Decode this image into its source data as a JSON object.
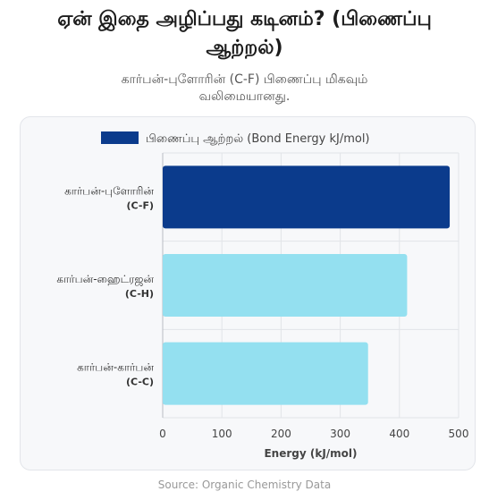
{
  "title_line1": "ஏன் இதை அழிப்பது கடினம்? (பிணைப்பு",
  "title_line2": "ஆற்றல்)",
  "subtitle_line1": "கார்பன்-புளோரின் (C-F) பிணைப்பு மிகவும்",
  "subtitle_line2": "வலிமையானது.",
  "source": "Source: Organic Chemistry Data",
  "colors": {
    "dark_bar": "#0b3b8c",
    "light_bar": "#94e0f0",
    "card_bg": "#f7f8fa",
    "grid": "#e2e4e8"
  },
  "chart_data": {
    "type": "bar",
    "orientation": "horizontal",
    "categories": [
      {
        "name": "கார்பன்-புளோரின்",
        "code": "(C-F)"
      },
      {
        "name": "கார்பன்-ஹைட்ரஜன்",
        "code": "(C-H)"
      },
      {
        "name": "கார்பன்-கார்பன்",
        "code": "(C-C)"
      }
    ],
    "series": [
      {
        "name": "பிணைப்பு ஆற்றல் (Bond Energy kJ/mol)",
        "values": [
          485,
          413,
          347
        ]
      }
    ],
    "bar_colors": [
      "#0b3b8c",
      "#94e0f0",
      "#94e0f0"
    ],
    "xlabel": "Energy (kJ/mol)",
    "xlim": [
      0,
      500
    ],
    "xticks": [
      0,
      100,
      200,
      300,
      400,
      500
    ],
    "grid": true,
    "legend_position": "top"
  }
}
